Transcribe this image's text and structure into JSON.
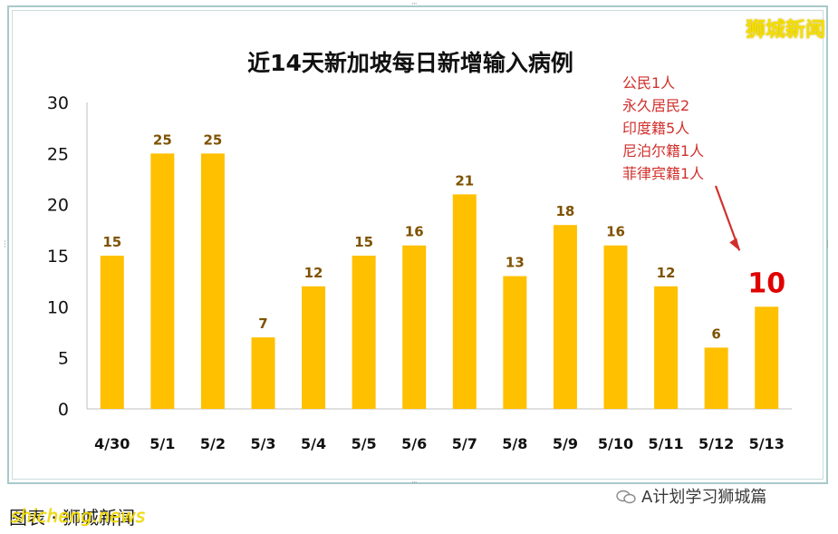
{
  "brand_tag": "狮城新闻",
  "bottom_left_text": "图表 · 狮城新闻",
  "bottom_left_watermark": "shicheng.news",
  "bottom_right_text": "A计划学习狮城篇",
  "colors": {
    "bar": "#ffc000",
    "value_label": "#7f5200",
    "highlight": "#e00000",
    "annotation": "#d0312d"
  },
  "chart_data": {
    "type": "bar",
    "title": "近14天新加坡每日新增输入病例",
    "categories": [
      "4/30",
      "5/1",
      "5/2",
      "5/3",
      "5/4",
      "5/5",
      "5/6",
      "5/7",
      "5/8",
      "5/9",
      "5/10",
      "5/11",
      "5/12",
      "5/13"
    ],
    "values": [
      15,
      25,
      25,
      7,
      12,
      15,
      16,
      21,
      13,
      18,
      16,
      12,
      6,
      10
    ],
    "ylim": [
      0,
      30
    ],
    "yticks": [
      0,
      5,
      10,
      15,
      20,
      25,
      30
    ],
    "xlabel": "",
    "ylabel": "",
    "highlight_index": 13,
    "annotation": {
      "lines": [
        "公民1人",
        "永久居民2",
        "印度籍5人",
        "尼泊尔籍1人",
        "菲律宾籍1人"
      ]
    }
  }
}
